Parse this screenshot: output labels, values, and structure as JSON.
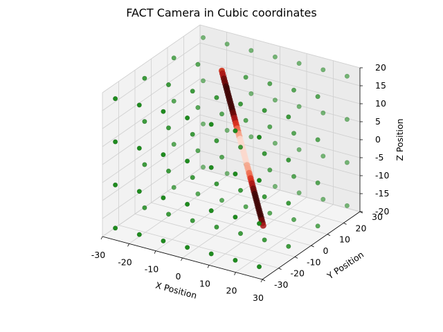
{
  "chart_data": {
    "type": "scatter3d",
    "title": "FACT Camera in Cubic coordinates",
    "xlabel": "X Position",
    "ylabel": "Y Position",
    "zlabel": "Z Position",
    "xlim": [
      -30,
      30
    ],
    "ylim": [
      -30,
      30
    ],
    "zlim": [
      -20,
      20
    ],
    "xticks": [
      -30,
      -20,
      -10,
      0,
      10,
      20,
      30
    ],
    "yticks": [
      -30,
      -20,
      -10,
      0,
      10,
      20,
      30
    ],
    "zticks": [
      -20,
      -15,
      -10,
      -5,
      0,
      5,
      10,
      15,
      20
    ],
    "grid": true,
    "series": [
      {
        "marker_color": "#1b8a1b",
        "grid_x": [
          -27,
          -18,
          -9,
          0,
          9,
          18,
          27
        ],
        "grid_y": [
          -27,
          -9,
          9,
          27
        ],
        "grid_z": [
          -18,
          -6,
          6,
          18
        ]
      },
      {
        "marker_color": "#d92e1c",
        "line_from": [
          -9,
          9,
          18
        ],
        "line_to": [
          12,
          0,
          -18
        ],
        "point_count": 60
      }
    ]
  }
}
